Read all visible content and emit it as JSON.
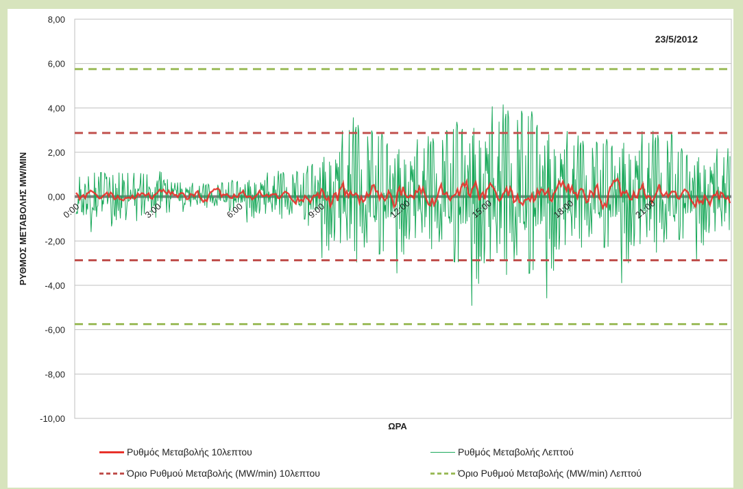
{
  "chart_data": {
    "type": "line",
    "date_label": "23/5/2012",
    "ylabel": "ΡΥΘΜΟΣ ΜΕΤΑΒΟΛΗΣ MW/MIN",
    "xlabel": "ΩΡΑ",
    "ylim": [
      -10,
      8
    ],
    "y_ticks": [
      "8,00",
      "6,00",
      "4,00",
      "2,00",
      "0,00",
      "-2,00",
      "-4,00",
      "-6,00",
      "-8,00",
      "-10,00"
    ],
    "x_ticks": [
      "0:00",
      "3:00",
      "6:00",
      "9:00",
      "12:00",
      "15:00",
      "18:00",
      "21:00"
    ],
    "series": [
      {
        "name": "Ρυθμός Μεταβολής 10λεπτου",
        "color": "#e8312a",
        "style": "solid-thick"
      },
      {
        "name": "Ρυθμός Μεταβολής Λεπτού",
        "color": "#19a85a",
        "style": "solid-thin"
      },
      {
        "name": "Όριο Ρυθμού Μεταβολής (MW/min) 10λεπτου",
        "color": "#c0504d",
        "style": "dashed",
        "values": [
          2.87,
          -2.87
        ]
      },
      {
        "name": "Όριο Ρυθμού Μεταβολής (MW/min) Λεπτού",
        "color": "#9bbb59",
        "style": "dashed",
        "values": [
          5.75,
          -5.75
        ]
      }
    ],
    "zero_line_color": "#7f7f7f"
  }
}
